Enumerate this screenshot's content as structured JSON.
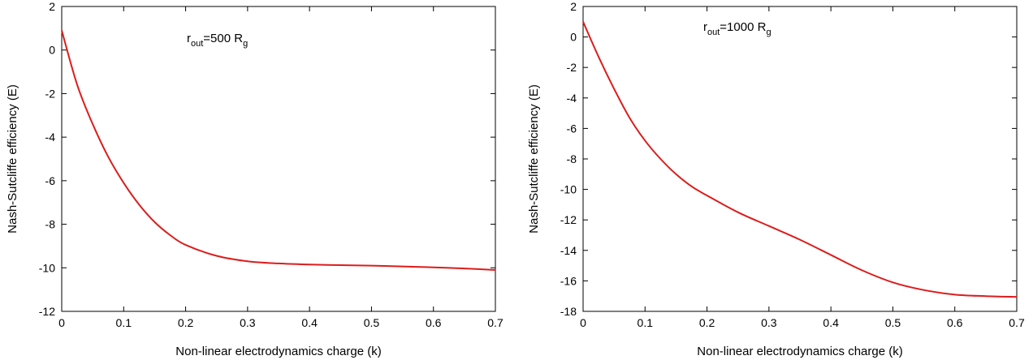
{
  "chart_data": [
    {
      "type": "line",
      "xlabel": "Non-linear electrodynamics charge (k)",
      "ylabel": "Nash-Sutcliffe efficiency (E)",
      "xlim": [
        0,
        0.7
      ],
      "ylim": [
        -12,
        2
      ],
      "xticks": [
        0,
        0.1,
        0.2,
        0.3,
        0.4,
        0.5,
        0.6,
        0.7
      ],
      "yticks": [
        -12,
        -10,
        -8,
        -6,
        -4,
        -2,
        0,
        2
      ],
      "xtick_labels": [
        "0",
        "0.1",
        "0.2",
        "0.3",
        "0.4",
        "0.5",
        "0.6",
        "0.7"
      ],
      "ytick_labels": [
        "-12",
        "-10",
        "-8",
        "-6",
        "-4",
        "-2",
        "0",
        "2"
      ],
      "annotation": {
        "r": "r",
        "sub1": "out",
        "mid": "=500 R",
        "sub2": "g"
      },
      "grid": false,
      "series": [
        {
          "color": "#dd1c1c",
          "x": [
            0,
            0.025,
            0.05,
            0.075,
            0.1,
            0.125,
            0.15,
            0.175,
            0.2,
            0.25,
            0.3,
            0.35,
            0.4,
            0.45,
            0.5,
            0.55,
            0.6,
            0.65,
            0.7
          ],
          "y": [
            0.9,
            -1.6,
            -3.4,
            -4.9,
            -6.1,
            -7.1,
            -7.9,
            -8.5,
            -8.95,
            -9.45,
            -9.7,
            -9.8,
            -9.85,
            -9.88,
            -9.9,
            -9.94,
            -9.98,
            -10.03,
            -10.1
          ]
        }
      ]
    },
    {
      "type": "line",
      "xlabel": "Non-linear electrodynamics charge (k)",
      "ylabel": "Nash-Sutcliffe efficiency (E)",
      "xlim": [
        0,
        0.7
      ],
      "ylim": [
        -18,
        2
      ],
      "xticks": [
        0,
        0.1,
        0.2,
        0.3,
        0.4,
        0.5,
        0.6,
        0.7
      ],
      "yticks": [
        -18,
        -16,
        -14,
        -12,
        -10,
        -8,
        -6,
        -4,
        -2,
        0,
        2
      ],
      "xtick_labels": [
        "0",
        "0.1",
        "0.2",
        "0.3",
        "0.4",
        "0.5",
        "0.6",
        "0.7"
      ],
      "ytick_labels": [
        "-18",
        "-16",
        "-14",
        "-12",
        "-10",
        "-8",
        "-6",
        "-4",
        "-2",
        "0",
        "2"
      ],
      "annotation": {
        "r": "r",
        "sub1": "out",
        "mid": "=1000 R",
        "sub2": "g"
      },
      "grid": false,
      "series": [
        {
          "color": "#dd1c1c",
          "x": [
            0,
            0.025,
            0.05,
            0.075,
            0.1,
            0.125,
            0.15,
            0.175,
            0.2,
            0.25,
            0.3,
            0.35,
            0.4,
            0.45,
            0.5,
            0.55,
            0.6,
            0.65,
            0.7
          ],
          "y": [
            1.0,
            -1.3,
            -3.4,
            -5.3,
            -6.8,
            -8.0,
            -9.0,
            -9.8,
            -10.4,
            -11.5,
            -12.4,
            -13.3,
            -14.3,
            -15.3,
            -16.1,
            -16.6,
            -16.9,
            -17.0,
            -17.05
          ]
        }
      ]
    }
  ]
}
